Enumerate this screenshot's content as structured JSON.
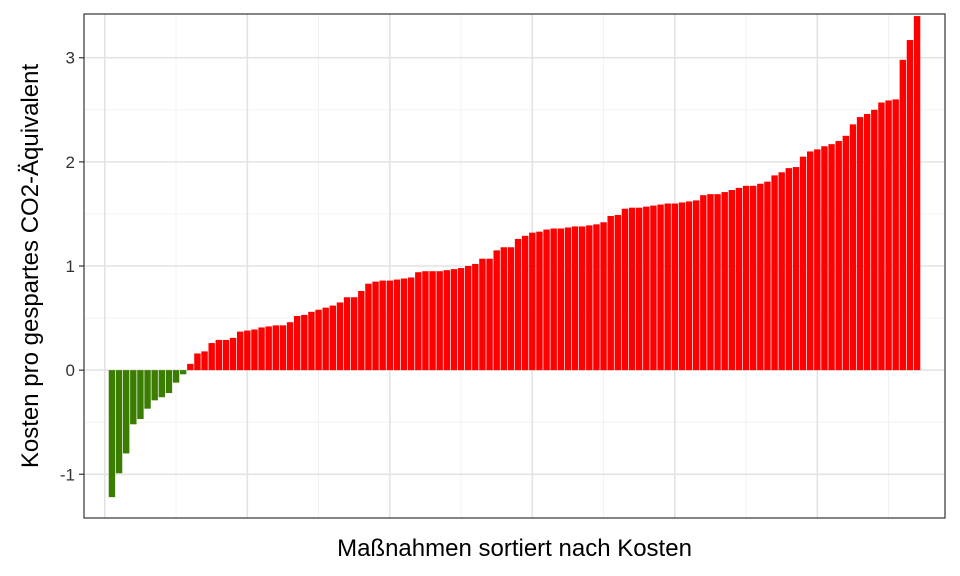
{
  "chart_data": {
    "type": "bar",
    "title": "",
    "xlabel": "Maßnahmen sortiert nach Kosten",
    "ylabel": "Kosten pro gespartes CO2-Äquivalent",
    "ylim": [
      -1.42,
      3.42
    ],
    "yticks": [
      -1,
      0,
      1,
      2,
      3
    ],
    "ytick_labels": [
      "-1",
      "0",
      "1",
      "2",
      "3"
    ],
    "grid": true,
    "legend": "none",
    "colors": {
      "negative": "#3a7d00",
      "positive": "#ff0000"
    },
    "values": [
      -1.22,
      -0.99,
      -0.8,
      -0.52,
      -0.47,
      -0.37,
      -0.29,
      -0.26,
      -0.22,
      -0.12,
      -0.04,
      0.06,
      0.16,
      0.18,
      0.26,
      0.29,
      0.29,
      0.31,
      0.37,
      0.38,
      0.39,
      0.41,
      0.42,
      0.43,
      0.43,
      0.46,
      0.52,
      0.53,
      0.56,
      0.58,
      0.6,
      0.62,
      0.65,
      0.7,
      0.7,
      0.76,
      0.83,
      0.85,
      0.86,
      0.86,
      0.87,
      0.88,
      0.89,
      0.94,
      0.95,
      0.95,
      0.95,
      0.96,
      0.97,
      0.98,
      1.0,
      1.02,
      1.07,
      1.07,
      1.15,
      1.18,
      1.18,
      1.26,
      1.29,
      1.32,
      1.33,
      1.35,
      1.36,
      1.36,
      1.37,
      1.38,
      1.38,
      1.39,
      1.4,
      1.42,
      1.48,
      1.49,
      1.55,
      1.56,
      1.56,
      1.57,
      1.58,
      1.59,
      1.6,
      1.6,
      1.61,
      1.62,
      1.63,
      1.68,
      1.69,
      1.69,
      1.71,
      1.73,
      1.75,
      1.77,
      1.77,
      1.79,
      1.81,
      1.87,
      1.9,
      1.94,
      1.95,
      2.05,
      2.1,
      2.12,
      2.15,
      2.17,
      2.2,
      2.25,
      2.36,
      2.43,
      2.46,
      2.5,
      2.57,
      2.59,
      2.6,
      2.98,
      3.17,
      3.4
    ]
  }
}
